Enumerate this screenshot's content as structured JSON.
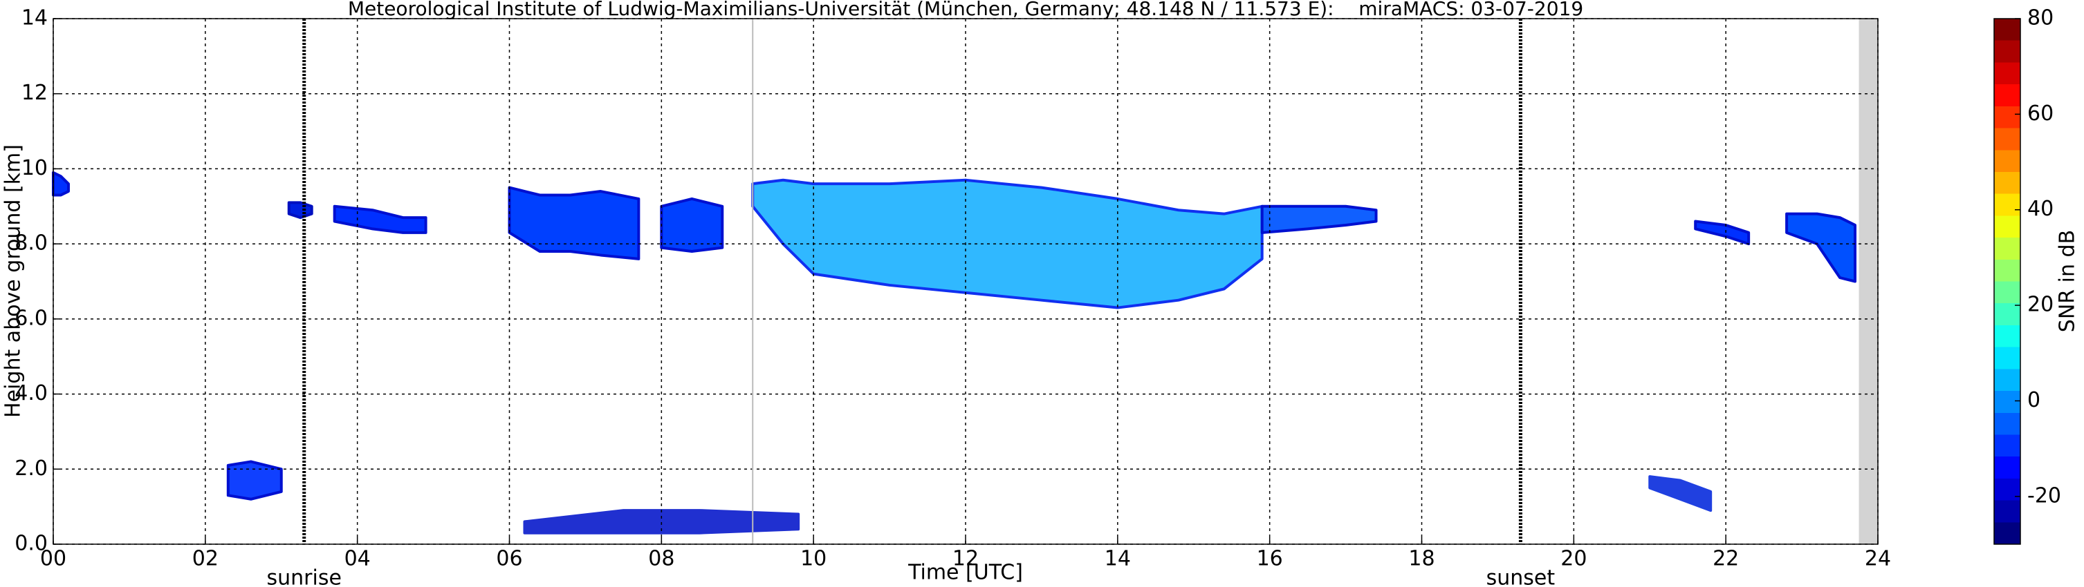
{
  "chart_data": {
    "type": "radar-time-height",
    "title": "Meteorological Institute of Ludwig-Maximilians-Universität (München, Germany; 48.148 N / 11.573 E):    miraMACS: 03-07-2019",
    "x_label": "Time [UTC]",
    "y_label": "Height above ground [km]",
    "colorbar_label": "SNR in dB",
    "xlim": [
      0,
      24
    ],
    "xticks": [
      {
        "value": 0,
        "label": "00"
      },
      {
        "value": 2,
        "label": "02"
      },
      {
        "value": 4,
        "label": "04"
      },
      {
        "value": 6,
        "label": "06"
      },
      {
        "value": 8,
        "label": "08"
      },
      10,
      12,
      14,
      16,
      18,
      20,
      22,
      24
    ],
    "ylim": [
      0,
      14
    ],
    "yticks": [
      {
        "value": 0,
        "label": "0.0"
      },
      {
        "value": 2,
        "label": "2.0"
      },
      {
        "value": 4,
        "label": "4.0"
      },
      {
        "value": 6,
        "label": "6.0"
      },
      {
        "value": 8,
        "label": "8.0"
      },
      10,
      12,
      14
    ],
    "clim": [
      -30,
      80
    ],
    "cticks": [
      -20,
      0,
      20,
      40,
      60,
      80
    ],
    "grid": true,
    "sun_events": [
      {
        "x": 3.3,
        "label": "sunrise"
      },
      {
        "x": 19.3,
        "label": "sunset"
      }
    ],
    "vlines": [
      9.2
    ],
    "shaded": [
      23.75,
      24
    ],
    "echoes": [
      {
        "color": "#0030ff",
        "edge": "#0010d0",
        "x": [
          0,
          0.1,
          0.2
        ],
        "top": [
          9.9,
          9.8,
          9.6
        ],
        "base": [
          9.3,
          9.3,
          9.4
        ]
      },
      {
        "color": "#0020e0",
        "edge": "#0010c0",
        "x": [
          3.1,
          3.25,
          3.4
        ],
        "top": [
          9.1,
          9.1,
          9.0
        ],
        "base": [
          8.8,
          8.7,
          8.8
        ]
      },
      {
        "color": "#0030ff",
        "edge": "#0010d0",
        "x": [
          3.7,
          4.2,
          4.6,
          4.9
        ],
        "top": [
          9.0,
          8.9,
          8.7,
          8.7
        ],
        "base": [
          8.6,
          8.4,
          8.3,
          8.3
        ]
      },
      {
        "color": "#0040ff",
        "edge": "#0010d0",
        "x": [
          6.0,
          6.4,
          6.8,
          7.2,
          7.7
        ],
        "top": [
          9.5,
          9.3,
          9.3,
          9.4,
          9.2
        ],
        "base": [
          8.3,
          7.8,
          7.8,
          7.7,
          7.6
        ]
      },
      {
        "color": "#0040ff",
        "edge": "#0010d0",
        "x": [
          8.0,
          8.4,
          8.8
        ],
        "top": [
          9.0,
          9.2,
          9.0
        ],
        "base": [
          7.9,
          7.8,
          7.9
        ]
      },
      {
        "color": "#30b8ff",
        "edge": "#1030f0",
        "x": [
          9.2,
          9.6,
          10.0,
          11.0,
          12.0,
          13.0,
          14.0,
          14.8,
          15.4,
          15.9
        ],
        "top": [
          9.6,
          9.7,
          9.6,
          9.6,
          9.7,
          9.5,
          9.2,
          8.9,
          8.8,
          9.0
        ],
        "base": [
          9.0,
          8.0,
          7.2,
          6.9,
          6.7,
          6.5,
          6.3,
          6.5,
          6.8,
          7.6
        ]
      },
      {
        "color": "#1060ff",
        "edge": "#0010d0",
        "x": [
          15.9,
          16.5,
          17.0,
          17.4
        ],
        "top": [
          9.0,
          9.0,
          9.0,
          8.9
        ],
        "base": [
          8.3,
          8.4,
          8.5,
          8.6
        ]
      },
      {
        "color": "#0030ff",
        "edge": "#0010d0",
        "x": [
          21.6,
          22.0,
          22.3
        ],
        "top": [
          8.6,
          8.5,
          8.3
        ],
        "base": [
          8.4,
          8.2,
          8.0
        ]
      },
      {
        "color": "#0050ff",
        "edge": "#0010d0",
        "x": [
          22.8,
          23.2,
          23.5,
          23.7
        ],
        "top": [
          8.8,
          8.8,
          8.7,
          8.5
        ],
        "base": [
          8.3,
          8.0,
          7.1,
          7.0
        ]
      },
      {
        "color": "#1040ff",
        "edge": "#0010d0",
        "x": [
          2.3,
          2.6,
          3.0
        ],
        "top": [
          2.1,
          2.2,
          2.0
        ],
        "base": [
          1.3,
          1.2,
          1.4
        ]
      },
      {
        "color": "#2030d0",
        "edge": "#2030d0",
        "x": [
          6.2,
          7.5,
          8.5,
          9.8
        ],
        "top": [
          0.6,
          0.9,
          0.9,
          0.8
        ],
        "base": [
          0.3,
          0.3,
          0.3,
          0.4
        ]
      },
      {
        "color": "#2040e0",
        "edge": "#2040e0",
        "x": [
          21.0,
          21.4,
          21.8
        ],
        "top": [
          1.8,
          1.7,
          1.4
        ],
        "base": [
          1.5,
          1.2,
          0.9
        ]
      }
    ]
  }
}
